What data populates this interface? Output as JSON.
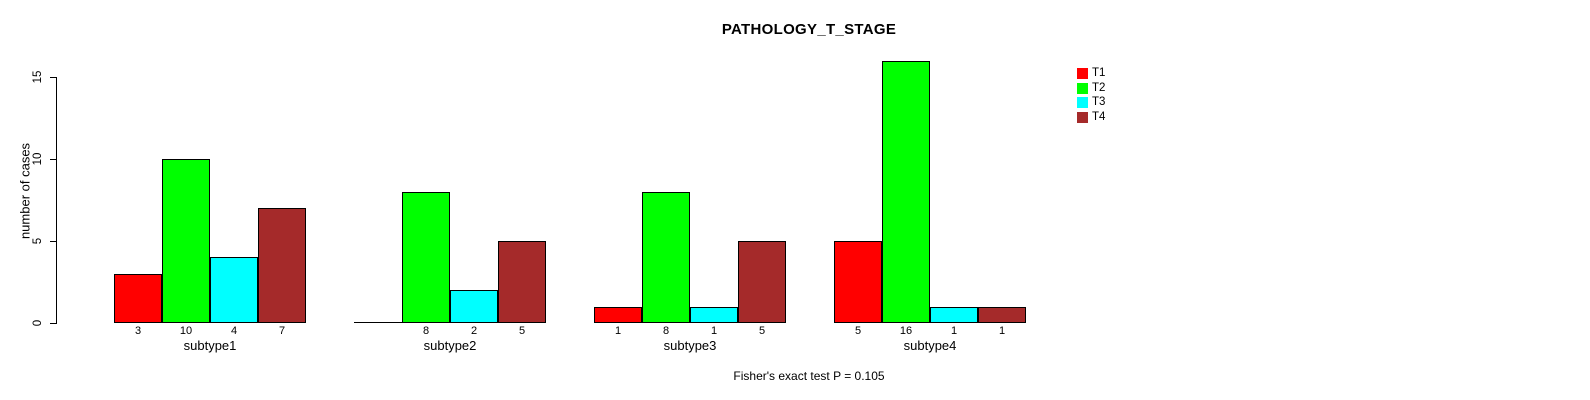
{
  "chart_data": {
    "type": "bar",
    "title": "PATHOLOGY_T_STAGE",
    "xlabel": "",
    "ylabel": "number of cases",
    "categories": [
      "subtype1",
      "subtype2",
      "subtype3",
      "subtype4"
    ],
    "series": [
      {
        "name": "T1",
        "color": "#ff0000",
        "values": [
          3,
          0,
          1,
          5
        ]
      },
      {
        "name": "T2",
        "color": "#00ff00",
        "values": [
          10,
          8,
          8,
          16
        ]
      },
      {
        "name": "T3",
        "color": "#00ffff",
        "values": [
          4,
          2,
          1,
          1
        ]
      },
      {
        "name": "T4",
        "color": "#a52a2a",
        "values": [
          7,
          5,
          5,
          1
        ]
      }
    ],
    "yticks": [
      0,
      5,
      10,
      15
    ],
    "ylim": [
      0,
      16.5
    ],
    "grid": false,
    "bar_value_labels_shown": true,
    "zero_value_labels_hidden": true,
    "legend_position": "right",
    "legend_entries": [
      "T1",
      "T2",
      "T3",
      "T4"
    ],
    "annotation": "Fisher's exact test P = 0.105"
  }
}
